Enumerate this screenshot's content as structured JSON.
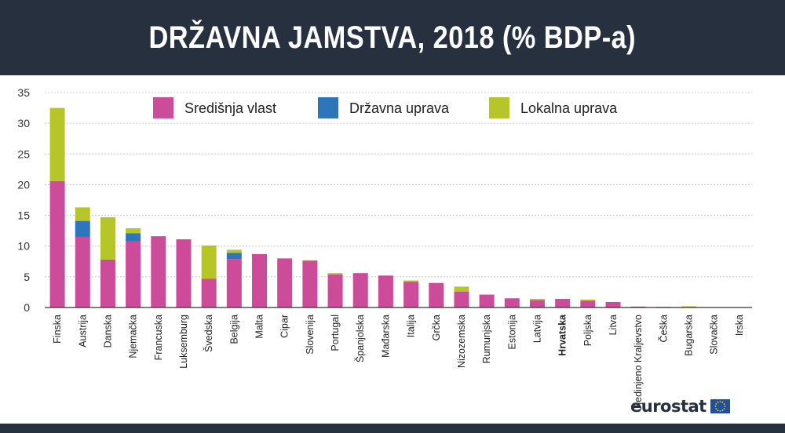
{
  "header": {
    "title": "DRŽAVNA JAMSTVA, 2018 (% BDP-a)"
  },
  "branding": {
    "logo_text": "eurostat"
  },
  "colors": {
    "header_bg": "#26303f",
    "central": "#cc4c9a",
    "state": "#2f75bb",
    "local": "#b6c628",
    "grid": "#c8c8c8",
    "axis": "#333333"
  },
  "chart_data": {
    "type": "bar",
    "stacked": true,
    "title": "DRŽAVNA JAMSTVA, 2018 (% BDP-a)",
    "xlabel": "",
    "ylabel": "",
    "ylim": [
      0,
      35
    ],
    "yticks": [
      0,
      5,
      10,
      15,
      20,
      25,
      30,
      35
    ],
    "grid": true,
    "legend": "top",
    "bold_categories": [
      "Hrvatska"
    ],
    "categories": [
      "Finska",
      "Austrija",
      "Danska",
      "Njemačka",
      "Francuska",
      "Luksemburg",
      "Švedska",
      "Belgija",
      "Malta",
      "Cipar",
      "Slovenija",
      "Portugal",
      "Španjolska",
      "Mađarska",
      "Italija",
      "Grčka",
      "Nizozemska",
      "Rumunjska",
      "Estonija",
      "Latvija",
      "Hrvatska",
      "Poljska",
      "Litva",
      "Ujedinjeno Kraljevstvo",
      "Češka",
      "Bugarska",
      "Slovačka",
      "Irska"
    ],
    "series": [
      {
        "name": "Središnja vlast",
        "color": "#cc4c9a",
        "values": [
          20.6,
          11.5,
          7.8,
          10.8,
          11.6,
          11.1,
          4.7,
          7.9,
          8.7,
          8.0,
          7.6,
          5.4,
          5.6,
          5.2,
          4.2,
          4.0,
          2.6,
          2.1,
          1.5,
          1.2,
          1.4,
          1.1,
          0.9,
          0.15,
          0.1,
          0.1,
          0.05,
          0.05
        ]
      },
      {
        "name": "Državna uprava",
        "color": "#2f75bb",
        "values": [
          0,
          2.6,
          0,
          1.3,
          0,
          0,
          0,
          1.0,
          0,
          0,
          0,
          0,
          0,
          0,
          0,
          0,
          0,
          0,
          0,
          0,
          0,
          0,
          0,
          0,
          0,
          0,
          0,
          0
        ]
      },
      {
        "name": "Lokalna uprava",
        "color": "#b6c628",
        "values": [
          11.9,
          2.2,
          6.9,
          0.8,
          0,
          0,
          5.4,
          0.5,
          0,
          0,
          0.1,
          0.2,
          0,
          0,
          0.2,
          0,
          0.8,
          0,
          0,
          0.2,
          0,
          0.2,
          0,
          0,
          0,
          0.1,
          0,
          0
        ]
      }
    ]
  }
}
